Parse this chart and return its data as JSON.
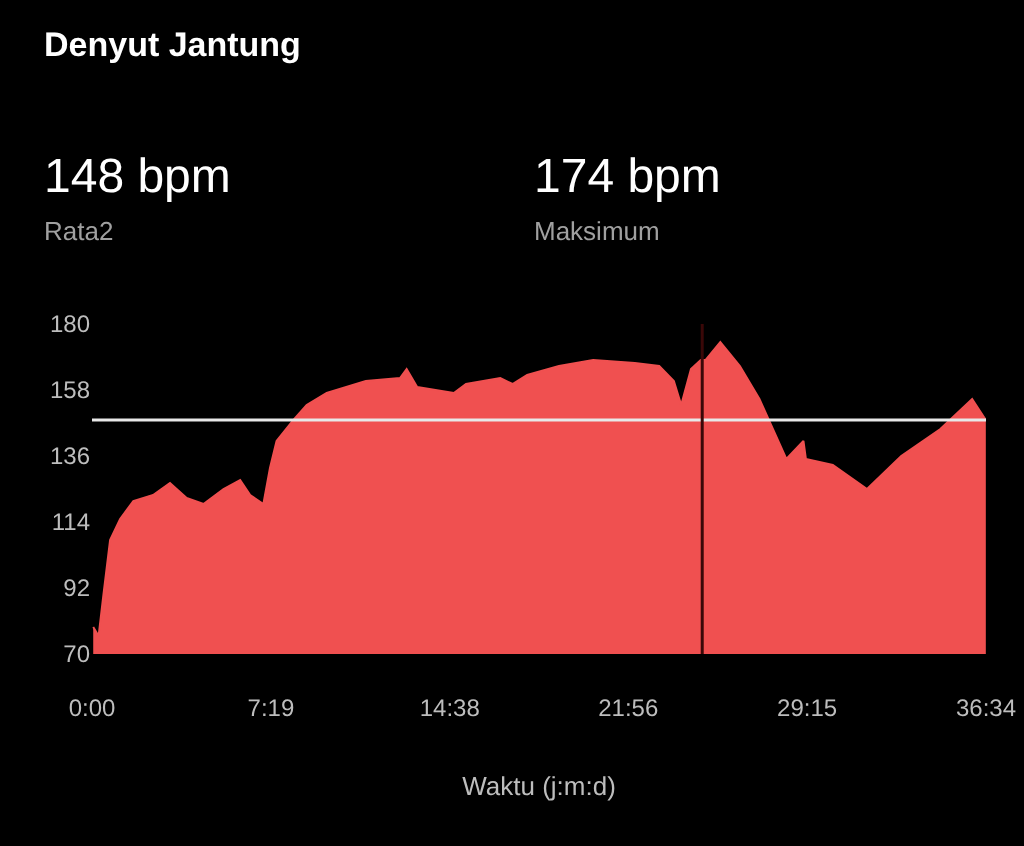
{
  "chart_data": {
    "type": "area",
    "title": "Denyut Jantung",
    "xlabel": "Waktu (j:m:d)",
    "annotations": [
      "148 bpm",
      "Rata2",
      "174 bpm",
      "Maksimum"
    ],
    "x": [
      0.05,
      0.27,
      0.47,
      0.74,
      1.15,
      1.69,
      2.5,
      3.19,
      3.87,
      4.56,
      5.38,
      6.06,
      6.47,
      7.01,
      7.28,
      7.55,
      8.24,
      8.78,
      9.6,
      11.2,
      12.6,
      12.87,
      13.3,
      14.8,
      15.3,
      16.7,
      17.2,
      17.8,
      19.1,
      20.5,
      22.2,
      23.2,
      23.8,
      24.1,
      24.5,
      24.9,
      25.1,
      25.7,
      26.5,
      27.3,
      28.4,
      29.1,
      29.2,
      30.3,
      31.7,
      33.1,
      34.7,
      36.0,
      36.56
    ],
    "series": [
      {
        "color": "#f05050",
        "values": [
          79,
          76,
          90,
          108,
          115,
          121,
          123,
          127,
          122,
          120,
          125,
          128,
          123,
          120,
          132,
          141,
          148,
          153,
          157,
          161,
          162,
          165,
          159,
          157,
          160,
          162,
          160,
          163,
          166,
          168,
          167,
          166,
          161,
          153,
          165,
          168,
          168,
          174,
          166,
          155,
          135,
          141,
          135,
          133,
          125,
          136,
          145,
          155,
          148
        ]
      }
    ],
    "xlim": [
      0,
      36.567
    ],
    "xticks": [
      {
        "value": 0,
        "label": "0:00"
      },
      {
        "value": 7.317,
        "label": "7:19"
      },
      {
        "value": 14.633,
        "label": "14:38"
      },
      {
        "value": 21.933,
        "label": "21:56"
      },
      {
        "value": 29.25,
        "label": "29:15"
      },
      {
        "value": 36.567,
        "label": "36:34"
      }
    ],
    "ylim": [
      70,
      180
    ],
    "yticks": [
      70,
      92,
      114,
      136,
      158,
      180
    ],
    "ref_lines": [
      {
        "axis": "y",
        "value": 148,
        "color": "#e8e8e8"
      },
      {
        "axis": "x",
        "value": 24.96,
        "color": "#3a0808"
      }
    ],
    "grid": false
  }
}
